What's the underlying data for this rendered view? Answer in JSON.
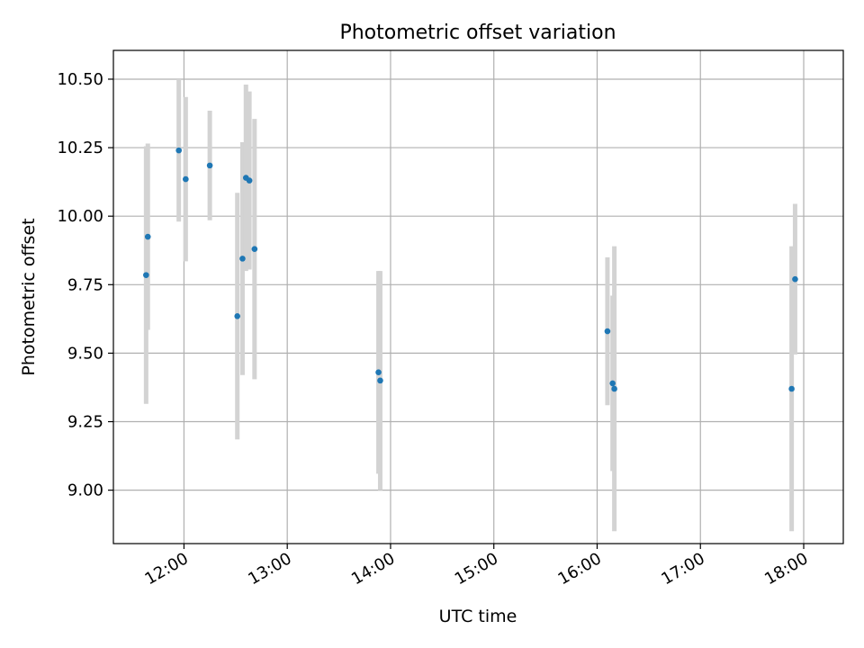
{
  "chart_data": {
    "type": "scatter",
    "title": "Photometric offset variation",
    "xlabel": "UTC time",
    "ylabel": "Photometric offset",
    "x_axis_type": "time",
    "xlim": [
      "11:19",
      "18:23"
    ],
    "ylim": [
      8.805,
      10.605
    ],
    "x_ticks": [
      "12:00",
      "13:00",
      "14:00",
      "15:00",
      "16:00",
      "17:00",
      "18:00"
    ],
    "y_ticks": [
      9.0,
      9.25,
      9.5,
      9.75,
      10.0,
      10.25,
      10.5
    ],
    "y_tick_labels": [
      "9.00",
      "9.25",
      "9.50",
      "9.75",
      "10.00",
      "10.25",
      "10.50"
    ],
    "grid": true,
    "point_color": "#1f77b4",
    "errorbar_color": "#d3d3d3",
    "series": [
      {
        "points": [
          {
            "x": "11:38",
            "y": 9.785,
            "err": 0.47
          },
          {
            "x": "11:39",
            "y": 9.925,
            "err": 0.34
          },
          {
            "x": "11:57",
            "y": 10.24,
            "err": 0.26
          },
          {
            "x": "12:01",
            "y": 10.135,
            "err": 0.3
          },
          {
            "x": "12:15",
            "y": 10.185,
            "err": 0.2
          },
          {
            "x": "12:31",
            "y": 9.635,
            "err": 0.45
          },
          {
            "x": "12:34",
            "y": 9.845,
            "err": 0.425
          },
          {
            "x": "12:36",
            "y": 10.14,
            "err": 0.34
          },
          {
            "x": "12:38",
            "y": 10.13,
            "err": 0.325
          },
          {
            "x": "12:41",
            "y": 9.88,
            "err": 0.475
          },
          {
            "x": "13:53",
            "y": 9.43,
            "err": 0.37
          },
          {
            "x": "13:54",
            "y": 9.4,
            "err": 0.4
          },
          {
            "x": "16:06",
            "y": 9.58,
            "err": 0.27
          },
          {
            "x": "16:09",
            "y": 9.39,
            "err": 0.32
          },
          {
            "x": "16:10",
            "y": 9.37,
            "err": 0.52
          },
          {
            "x": "17:53",
            "y": 9.37,
            "err": 0.52
          },
          {
            "x": "17:55",
            "y": 9.77,
            "err": 0.275
          }
        ]
      }
    ]
  }
}
